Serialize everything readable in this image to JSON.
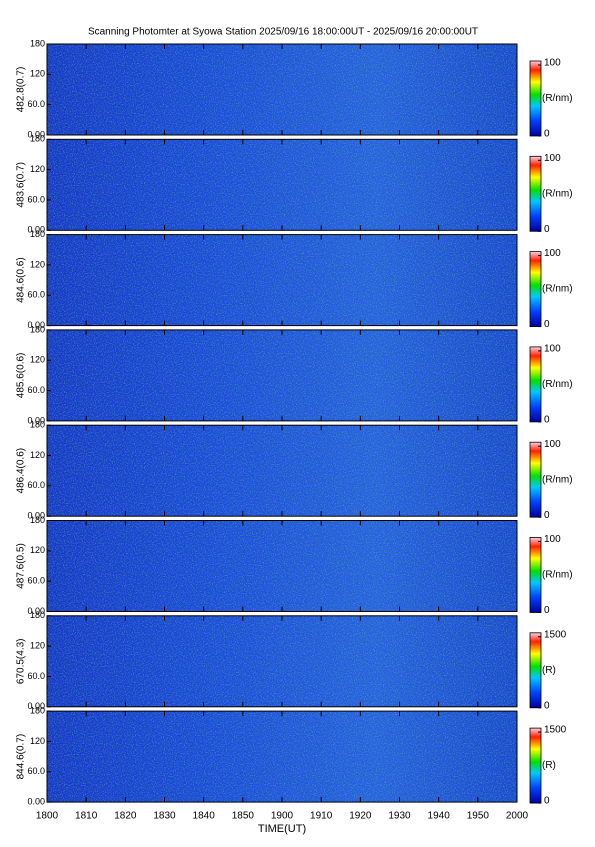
{
  "chart_data": {
    "type": "heatmap",
    "title": "Scanning Photomter at Syowa Station 2025/09/16 18:00:00UT - 2025/09/16 20:00:00UT",
    "xlabel": "TIME(UT)",
    "xlim": [
      0,
      120
    ],
    "xticks": [
      {
        "value": 0,
        "label": "1800"
      },
      {
        "value": 10,
        "label": "1810"
      },
      {
        "value": 20,
        "label": "1820"
      },
      {
        "value": 30,
        "label": "1830"
      },
      {
        "value": 40,
        "label": "1840"
      },
      {
        "value": 50,
        "label": "1850"
      },
      {
        "value": 60,
        "label": "1900"
      },
      {
        "value": 70,
        "label": "1910"
      },
      {
        "value": 80,
        "label": "1920"
      },
      {
        "value": 90,
        "label": "1930"
      },
      {
        "value": 100,
        "label": "1940"
      },
      {
        "value": 110,
        "label": "1950"
      },
      {
        "value": 120,
        "label": "2000"
      }
    ],
    "panels": [
      {
        "ylabel": "482.8(0.7)",
        "ylim": [
          0,
          180
        ],
        "yticks": [
          {
            "value": 0,
            "label": "0.00"
          },
          {
            "value": 60,
            "label": "60.0"
          },
          120,
          180
        ],
        "clim": [
          0,
          100
        ],
        "cticks": [
          0,
          100
        ],
        "cunit": "(R/nm)"
      },
      {
        "ylabel": "483.6(0.7)",
        "ylim": [
          0,
          180
        ],
        "yticks": [
          {
            "value": 0,
            "label": "0.00"
          },
          {
            "value": 60,
            "label": "60.0"
          },
          120,
          180
        ],
        "clim": [
          0,
          100
        ],
        "cticks": [
          0,
          100
        ],
        "cunit": "(R/nm)"
      },
      {
        "ylabel": "484.6(0.6)",
        "ylim": [
          0,
          180
        ],
        "yticks": [
          {
            "value": 0,
            "label": "0.00"
          },
          {
            "value": 60,
            "label": "60.0"
          },
          120,
          180
        ],
        "clim": [
          0,
          100
        ],
        "cticks": [
          0,
          100
        ],
        "cunit": "(R/nm)"
      },
      {
        "ylabel": "485.6(0.6)",
        "ylim": [
          0,
          180
        ],
        "yticks": [
          {
            "value": 0,
            "label": "0.00"
          },
          {
            "value": 60,
            "label": "60.0"
          },
          120,
          180
        ],
        "clim": [
          0,
          100
        ],
        "cticks": [
          0,
          100
        ],
        "cunit": "(R/nm)"
      },
      {
        "ylabel": "486.4(0.6)",
        "ylim": [
          0,
          180
        ],
        "yticks": [
          {
            "value": 0,
            "label": "0.00"
          },
          {
            "value": 60,
            "label": "60.0"
          },
          120,
          180
        ],
        "clim": [
          0,
          100
        ],
        "cticks": [
          0,
          100
        ],
        "cunit": "(R/nm)"
      },
      {
        "ylabel": "487.6(0.5)",
        "ylim": [
          0,
          180
        ],
        "yticks": [
          {
            "value": 0,
            "label": "0.00"
          },
          {
            "value": 60,
            "label": "60.0"
          },
          120,
          180
        ],
        "clim": [
          0,
          100
        ],
        "cticks": [
          0,
          100
        ],
        "cunit": "(R/nm)"
      },
      {
        "ylabel": "670.5(4.3)",
        "ylim": [
          0,
          180
        ],
        "yticks": [
          {
            "value": 0,
            "label": "0.00"
          },
          {
            "value": 60,
            "label": "60.0"
          },
          120,
          180
        ],
        "clim": [
          0,
          1500
        ],
        "cticks": [
          0,
          1500
        ],
        "cunit": "(R)"
      },
      {
        "ylabel": "844.6(0.7)",
        "ylim": [
          0,
          180
        ],
        "yticks": [
          {
            "value": 0,
            "label": "0.00"
          },
          {
            "value": 60,
            "label": "60.0"
          },
          120,
          180
        ],
        "clim": [
          0,
          1500
        ],
        "cticks": [
          0,
          1500
        ],
        "cunit": "(R)"
      }
    ]
  }
}
